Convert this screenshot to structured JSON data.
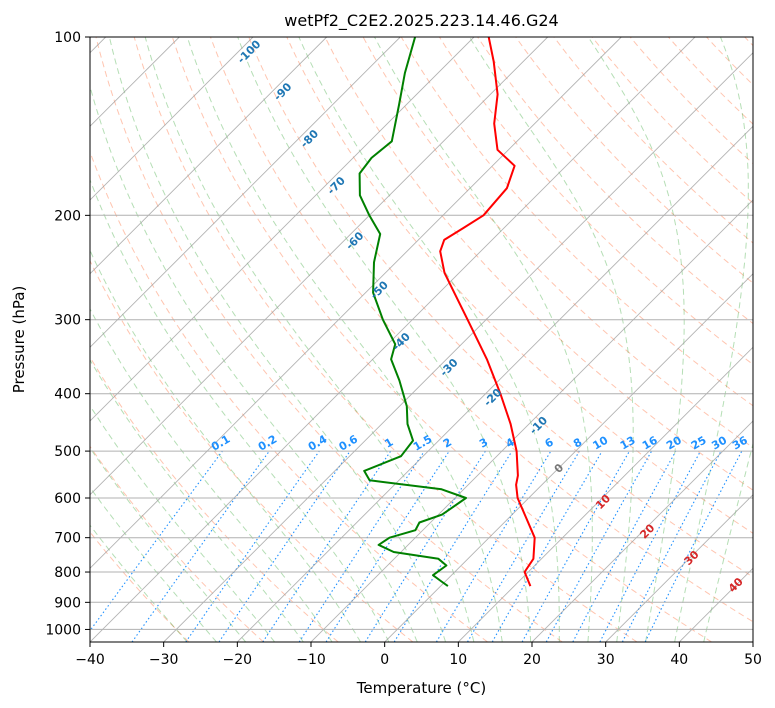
{
  "chart_data": {
    "type": "line",
    "subtype": "skew-t log-p diagram",
    "title": "wetPf2_C2E2.2025.223.14.46.G24",
    "xlabel": "Temperature (°C)",
    "ylabel": "Pressure (hPa)",
    "xlim": [
      -40,
      50
    ],
    "ylim": [
      1050,
      100
    ],
    "y_scale": "log",
    "x_ticks": [
      -40,
      -30,
      -20,
      -10,
      0,
      10,
      20,
      30,
      40,
      50
    ],
    "y_ticks": [
      100,
      200,
      300,
      400,
      500,
      600,
      700,
      800,
      900,
      1000
    ],
    "grid": true,
    "colors": {
      "temperature": "#ff0000",
      "dewpoint": "#008000",
      "isotherm_label": "#1f77b4",
      "mixing_ratio": "#1e90ff",
      "dry_adiabat": "#ff7f50",
      "moist_adiabat": "#2ca02c",
      "moist_adiabat_label": "#d62728",
      "grid": "#b0b0b0"
    },
    "series": [
      {
        "key": "temperature",
        "points": [
          {
            "p": 845,
            "t": 12.2
          },
          {
            "p": 800,
            "t": 9.5
          },
          {
            "p": 760,
            "t": 8.9
          },
          {
            "p": 700,
            "t": 6.2
          },
          {
            "p": 650,
            "t": 2.5
          },
          {
            "p": 600,
            "t": -1.5
          },
          {
            "p": 570,
            "t": -3.5
          },
          {
            "p": 550,
            "t": -4.5
          },
          {
            "p": 500,
            "t": -8.0
          },
          {
            "p": 450,
            "t": -12.5
          },
          {
            "p": 400,
            "t": -18.0
          },
          {
            "p": 350,
            "t": -24.5
          },
          {
            "p": 300,
            "t": -32.5
          },
          {
            "p": 270,
            "t": -38.0
          },
          {
            "p": 250,
            "t": -42.0
          },
          {
            "p": 230,
            "t": -45.5
          },
          {
            "p": 220,
            "t": -46.5
          },
          {
            "p": 210,
            "t": -45.5
          },
          {
            "p": 200,
            "t": -44.5
          },
          {
            "p": 180,
            "t": -45.0
          },
          {
            "p": 165,
            "t": -47.0
          },
          {
            "p": 155,
            "t": -51.5
          },
          {
            "p": 140,
            "t": -55.5
          },
          {
            "p": 125,
            "t": -59.0
          },
          {
            "p": 110,
            "t": -64.0
          },
          {
            "p": 100,
            "t": -68.0
          }
        ]
      },
      {
        "key": "dewpoint",
        "points": [
          {
            "p": 845,
            "t": 1.0
          },
          {
            "p": 830,
            "t": -0.5
          },
          {
            "p": 810,
            "t": -2.5
          },
          {
            "p": 780,
            "t": -2.0
          },
          {
            "p": 760,
            "t": -4.0
          },
          {
            "p": 740,
            "t": -11.0
          },
          {
            "p": 720,
            "t": -14.0
          },
          {
            "p": 700,
            "t": -13.5
          },
          {
            "p": 680,
            "t": -11.0
          },
          {
            "p": 660,
            "t": -11.5
          },
          {
            "p": 640,
            "t": -9.5
          },
          {
            "p": 600,
            "t": -8.5
          },
          {
            "p": 580,
            "t": -13.0
          },
          {
            "p": 560,
            "t": -24.0
          },
          {
            "p": 540,
            "t": -26.0
          },
          {
            "p": 510,
            "t": -23.0
          },
          {
            "p": 480,
            "t": -23.5
          },
          {
            "p": 450,
            "t": -26.5
          },
          {
            "p": 420,
            "t": -29.0
          },
          {
            "p": 380,
            "t": -33.5
          },
          {
            "p": 350,
            "t": -37.5
          },
          {
            "p": 330,
            "t": -39.0
          },
          {
            "p": 300,
            "t": -44.0
          },
          {
            "p": 270,
            "t": -49.0
          },
          {
            "p": 240,
            "t": -53.0
          },
          {
            "p": 215,
            "t": -56.0
          },
          {
            "p": 200,
            "t": -60.0
          },
          {
            "p": 185,
            "t": -64.0
          },
          {
            "p": 170,
            "t": -67.0
          },
          {
            "p": 160,
            "t": -67.5
          },
          {
            "p": 150,
            "t": -67.0
          },
          {
            "p": 130,
            "t": -71.0
          },
          {
            "p": 115,
            "t": -74.5
          },
          {
            "p": 100,
            "t": -78.0
          }
        ]
      }
    ],
    "isotherm_labels": [
      -100,
      -90,
      -80,
      -70,
      -60,
      -50,
      -40,
      -30,
      -20,
      -10
    ],
    "mixing_ratio_labels": [
      "0.1",
      "0.2",
      "0.4",
      "0.6",
      "1",
      "1.5",
      "2",
      "3",
      "4",
      "6",
      "8",
      "10",
      "13",
      "16",
      "20",
      "25",
      "30",
      "36"
    ],
    "moist_adiabat_labels": [
      "0",
      "10",
      "20",
      "30",
      "40"
    ]
  }
}
